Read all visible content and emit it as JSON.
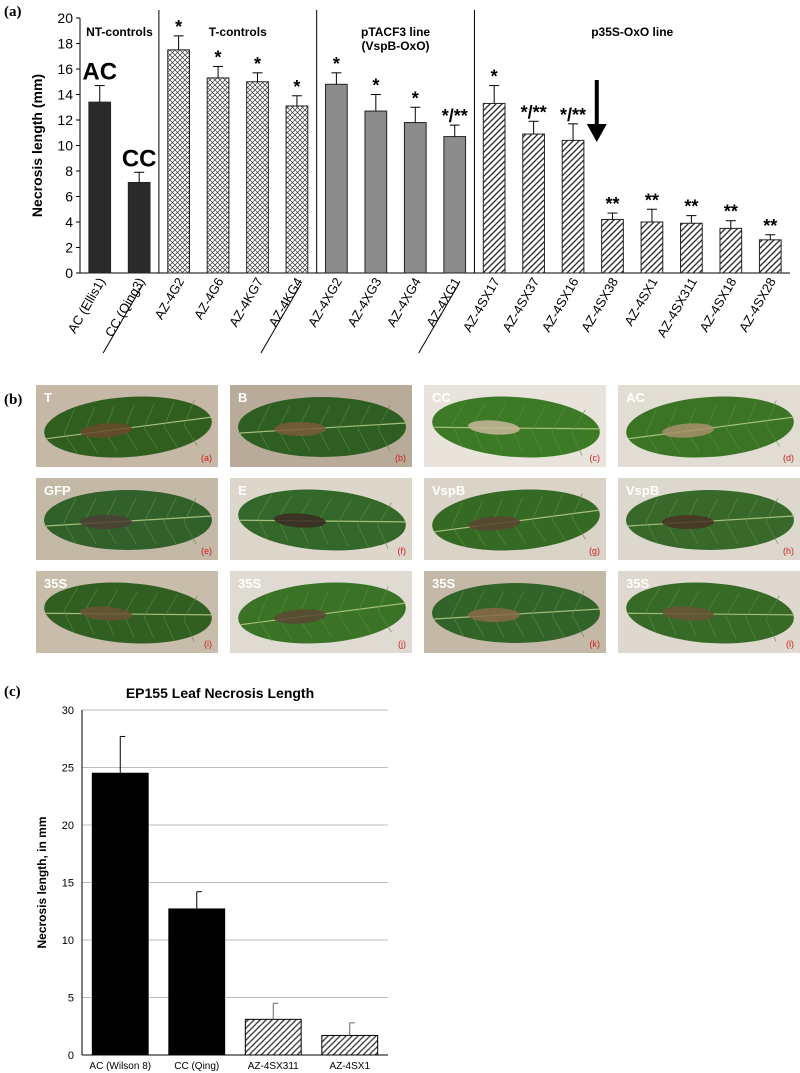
{
  "figure": {
    "panel_a_label": "(a)",
    "panel_b_label": "(b)",
    "panel_c_label": "(c)"
  },
  "chart_data": [
    {
      "type": "bar",
      "panel": "(a)",
      "title": "",
      "ylabel": "Necrosis length (mm)",
      "xlabel": "",
      "ylim": [
        0,
        20
      ],
      "yticks": [
        0,
        2,
        4,
        6,
        8,
        10,
        12,
        14,
        16,
        18,
        20
      ],
      "grid": false,
      "groups": [
        {
          "label": "NT-controls",
          "categories": [
            "AC (Ellis1)",
            "CC (Qing3)"
          ]
        },
        {
          "label": "T-controls",
          "categories": [
            "AZ-4G2",
            "AZ-4G6",
            "AZ-4KG7",
            "AZ-4KG4"
          ]
        },
        {
          "label": "pTACF3 line\n(VspB-OxO)",
          "categories": [
            "AZ-4XG2",
            "AZ-4XG3",
            "AZ-4XG4",
            "AZ-4XG1"
          ]
        },
        {
          "label": "p35S-OxO line",
          "categories": [
            "AZ-4SX17",
            "AZ-4SX37",
            "AZ-4SX16",
            "AZ-4SX38",
            "AZ-4SX1",
            "AZ-4SX311",
            "AZ-4SX18",
            "AZ-4SX28"
          ]
        }
      ],
      "categories": [
        "AC (Ellis1)",
        "CC (Qing3)",
        "AZ-4G2",
        "AZ-4G6",
        "AZ-4KG7",
        "AZ-4KG4",
        "AZ-4XG2",
        "AZ-4XG3",
        "AZ-4XG4",
        "AZ-4XG1",
        "AZ-4SX17",
        "AZ-4SX37",
        "AZ-4SX16",
        "AZ-4SX38",
        "AZ-4SX1",
        "AZ-4SX311",
        "AZ-4SX18",
        "AZ-4SX28"
      ],
      "values": [
        13.4,
        7.1,
        17.5,
        15.3,
        15.0,
        13.1,
        14.8,
        12.7,
        11.8,
        10.7,
        13.3,
        10.9,
        10.4,
        4.2,
        4.0,
        3.9,
        3.5,
        2.6
      ],
      "errors": [
        1.3,
        0.8,
        1.1,
        0.9,
        0.7,
        0.8,
        0.9,
        1.3,
        1.2,
        0.9,
        1.4,
        1.0,
        1.3,
        0.5,
        1.0,
        0.6,
        0.6,
        0.4
      ],
      "fills": [
        "solid",
        "solid",
        "crosshatch",
        "crosshatch",
        "crosshatch",
        "crosshatch",
        "gray",
        "gray",
        "gray",
        "gray",
        "diagonal",
        "diagonal",
        "diagonal",
        "diagonal",
        "diagonal",
        "diagonal",
        "diagonal",
        "diagonal"
      ],
      "annotations": [
        "",
        "",
        "*",
        "*",
        "*",
        "*",
        "*",
        "*",
        "*",
        "*/**",
        "*",
        "*/**",
        "*/**",
        "**",
        "**",
        "**",
        "**",
        "**"
      ],
      "big_labels": [
        {
          "category": "AC (Ellis1)",
          "text": "AC"
        },
        {
          "category": "CC (Qing3)",
          "text": "CC"
        }
      ],
      "underlined_categories": [
        "CC (Qing3)",
        "AZ-4KG4",
        "AZ-4XG1"
      ],
      "arrow_between": [
        "AZ-4SX16",
        "AZ-4SX38"
      ],
      "colors": {
        "solid": "#2a2a2a",
        "gray": "#8c8c8c",
        "pattern": "#333333"
      }
    },
    {
      "type": "bar",
      "panel": "(c)",
      "title": "EP155 Leaf Necrosis Length",
      "ylabel": "Necrosis length, in mm",
      "xlabel": "",
      "ylim": [
        0,
        30
      ],
      "yticks": [
        0,
        5,
        10,
        15,
        20,
        25,
        30
      ],
      "grid": true,
      "categories": [
        "AC (Wilson 8)",
        "CC (Qing)",
        "AZ-4SX311",
        "AZ-4SX1"
      ],
      "values": [
        24.5,
        12.7,
        3.1,
        1.7
      ],
      "errors": [
        3.2,
        1.5,
        1.4,
        1.1
      ],
      "fills": [
        "solid",
        "solid",
        "diagonal",
        "diagonal"
      ],
      "colors": {
        "solid": "#000000",
        "pattern": "#444444",
        "grid": "#bdbdbd"
      }
    }
  ],
  "leaves": [
    {
      "tag": "T",
      "sub": "(a)",
      "bg": "#c6b8a6",
      "leaf": "#2f5e1f",
      "lesion": "#6b4a2e"
    },
    {
      "tag": "B",
      "sub": "(b)",
      "bg": "#b9ab99",
      "leaf": "#2f5e22",
      "lesion": "#7a5a3a"
    },
    {
      "tag": "CC",
      "sub": "(c)",
      "bg": "#e8e4dc",
      "leaf": "#3d7a26",
      "lesion": "#c8b79a"
    },
    {
      "tag": "AC",
      "sub": "(d)",
      "bg": "#e2ddd3",
      "leaf": "#3a7424",
      "lesion": "#a8916c"
    },
    {
      "tag": "GFP",
      "sub": "(e)",
      "bg": "#c4b8a6",
      "leaf": "#31602a",
      "lesion": "#4c3f36"
    },
    {
      "tag": "E",
      "sub": "(f)",
      "bg": "#dcd6cb",
      "leaf": "#34682a",
      "lesion": "#3a2a22"
    },
    {
      "tag": "VspB",
      "sub": "(g)",
      "bg": "#d9d3c8",
      "leaf": "#356a24",
      "lesion": "#5a4430"
    },
    {
      "tag": "VspB",
      "sub": "(h)",
      "bg": "#ddd8ce",
      "leaf": "#38682a",
      "lesion": "#4a3426"
    },
    {
      "tag": "35S",
      "sub": "(i)",
      "bg": "#c8bcaa",
      "leaf": "#315f22",
      "lesion": "#6a5236"
    },
    {
      "tag": "35S",
      "sub": "(j)",
      "bg": "#e0dbd2",
      "leaf": "#3a7226",
      "lesion": "#5c4834"
    },
    {
      "tag": "35S",
      "sub": "(k)",
      "bg": "#c4b8a6",
      "leaf": "#32642a",
      "lesion": "#8a6a48"
    },
    {
      "tag": "35S",
      "sub": "(l)",
      "bg": "#ded8ce",
      "leaf": "#366a26",
      "lesion": "#6a5236"
    }
  ]
}
